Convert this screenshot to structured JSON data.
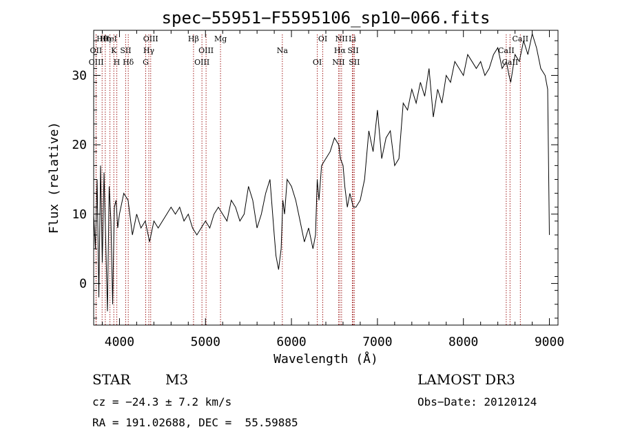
{
  "chart_data": {
    "type": "line",
    "title": "spec−55951−F5595106_sp10−066.fits",
    "xlabel": "Wavelength (Å)",
    "ylabel": "Flux (relative)",
    "xlim": [
      3700,
      9100
    ],
    "ylim": [
      -6,
      36.5
    ],
    "xticks": [
      4000,
      5000,
      6000,
      7000,
      8000,
      9000
    ],
    "yticks": [
      0,
      10,
      20,
      30
    ],
    "grid": false,
    "series": [
      {
        "x": [
          3700,
          3720,
          3740,
          3760,
          3780,
          3800,
          3820,
          3840,
          3860,
          3880,
          3900,
          3920,
          3940,
          3960,
          3980,
          4000,
          4050,
          4100,
          4150,
          4200,
          4250,
          4300,
          4350,
          4400,
          4450,
          4500,
          4550,
          4600,
          4650,
          4700,
          4750,
          4800,
          4850,
          4900,
          4950,
          5000,
          5050,
          5100,
          5150,
          5200,
          5250,
          5300,
          5350,
          5400,
          5450,
          5500,
          5550,
          5600,
          5650,
          5700,
          5750,
          5800,
          5820,
          5850,
          5880,
          5900,
          5920,
          5950,
          6000,
          6050,
          6100,
          6150,
          6200,
          6250,
          6280,
          6300,
          6320,
          6350,
          6400,
          6450,
          6500,
          6550,
          6570,
          6600,
          6620,
          6650,
          6680,
          6700,
          6720,
          6750,
          6800,
          6850,
          6900,
          6950,
          7000,
          7050,
          7100,
          7150,
          7200,
          7250,
          7300,
          7350,
          7400,
          7450,
          7500,
          7550,
          7600,
          7650,
          7700,
          7750,
          7800,
          7850,
          7900,
          7950,
          8000,
          8050,
          8100,
          8150,
          8200,
          8250,
          8300,
          8350,
          8400,
          8450,
          8500,
          8530,
          8550,
          8600,
          8650,
          8700,
          8750,
          8800,
          8850,
          8900,
          8950,
          8980,
          9000
        ],
        "y": [
          10,
          5,
          15,
          -2,
          17,
          3,
          16,
          6,
          -4,
          14,
          9,
          -3,
          11,
          12,
          8,
          10,
          13,
          12,
          7,
          10,
          8,
          9,
          6,
          9,
          8,
          9,
          10,
          11,
          10,
          11,
          9,
          10,
          8,
          7,
          8,
          9,
          8,
          10,
          11,
          10,
          9,
          12,
          11,
          9,
          10,
          14,
          12,
          8,
          10,
          13,
          15,
          7,
          4,
          2,
          5,
          12,
          10,
          15,
          14,
          12,
          9,
          6,
          8,
          5,
          7,
          15,
          12,
          17,
          18,
          19,
          21,
          20,
          18,
          17,
          14,
          11,
          13,
          12,
          11,
          11,
          12,
          15,
          22,
          19,
          25,
          18,
          21,
          22,
          17,
          18,
          26,
          25,
          28,
          26,
          29,
          27,
          31,
          24,
          28,
          26,
          30,
          29,
          32,
          31,
          30,
          33,
          32,
          31,
          32,
          30,
          31,
          33,
          34,
          31,
          32,
          30,
          29,
          33,
          32,
          35,
          33,
          36,
          34,
          31,
          30,
          28,
          7
        ]
      }
    ],
    "lines": [
      {
        "label": "Hθ",
        "x": 3798
      },
      {
        "label": "OII",
        "x": 3727
      },
      {
        "label": "OIII",
        "x": 3729
      },
      {
        "label": "Hη",
        "x": 3835
      },
      {
        "label": "K",
        "x": 3934
      },
      {
        "label": "H",
        "x": 3969
      },
      {
        "label": "HeI",
        "x": 3889
      },
      {
        "label": "SII",
        "x": 4072
      },
      {
        "label": "Hδ",
        "x": 4102
      },
      {
        "label": "OIII",
        "x": 4363
      },
      {
        "label": "Hγ",
        "x": 4341
      },
      {
        "label": "G",
        "x": 4305
      },
      {
        "label": "Hβ",
        "x": 4861
      },
      {
        "label": "OIII",
        "x": 5007
      },
      {
        "label": "OIII",
        "x": 4959
      },
      {
        "label": "Mg",
        "x": 5175
      },
      {
        "label": "Na",
        "x": 5894
      },
      {
        "label": "OI",
        "x": 6300
      },
      {
        "label": "OI",
        "x": 6364
      },
      {
        "label": "Hα",
        "x": 6563
      },
      {
        "label": "NII",
        "x": 6548
      },
      {
        "label": "NII",
        "x": 6583
      },
      {
        "label": "SII",
        "x": 6717
      },
      {
        "label": "SII",
        "x": 6731
      },
      {
        "label": "Li",
        "x": 6708
      },
      {
        "label": "CaII",
        "x": 8498
      },
      {
        "label": "CaII",
        "x": 8542
      },
      {
        "label": "CaII",
        "x": 8662
      }
    ]
  },
  "info": {
    "class": "STAR",
    "subclass": "M3",
    "survey": "LAMOST DR3",
    "cz": "cz = −24.3 ± 7.2 km/s",
    "obsdate": "Obs−Date: 20120124",
    "radec": "RA = 191.02688, DEC =  55.59885"
  }
}
